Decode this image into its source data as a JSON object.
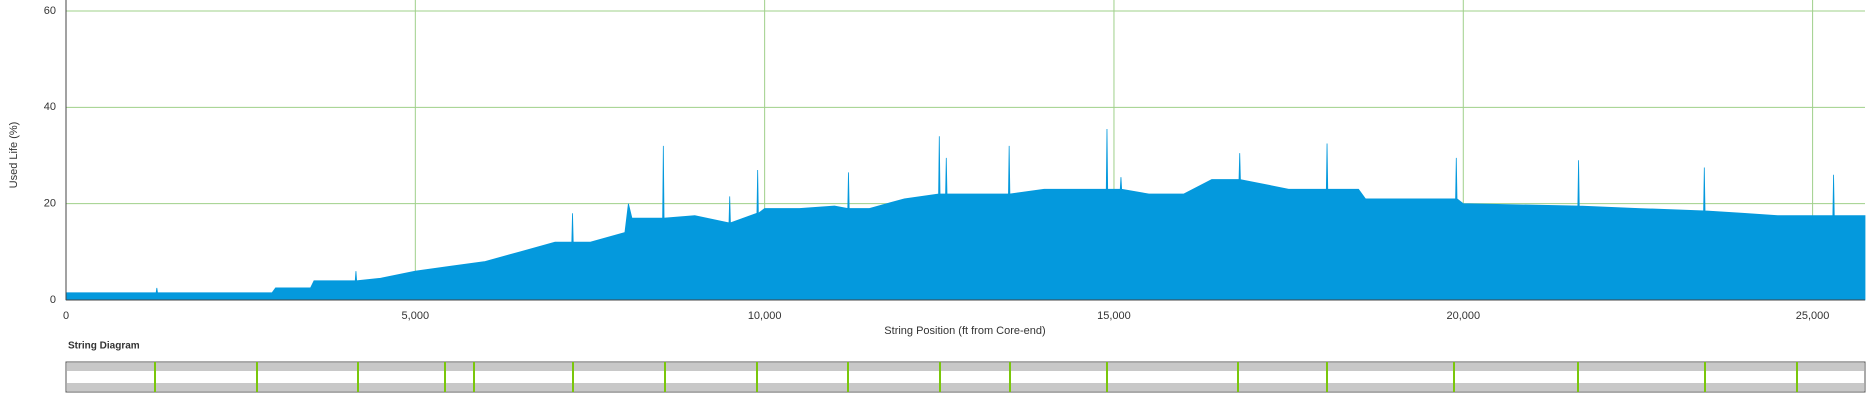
{
  "chart_data": {
    "type": "area",
    "ylabel": "Used Life (%)",
    "xlabel": "String Position (ft from Core-end)",
    "diagram_title": "String Diagram",
    "color": "#0499dd",
    "grid": true,
    "xlim": [
      0,
      25750
    ],
    "ylim": [
      0,
      60
    ],
    "yticks": [
      0,
      20,
      40,
      60
    ],
    "xticks": [
      0,
      {
        "value": 5000,
        "label": "5,000"
      },
      {
        "value": 10000,
        "label": "10,000"
      },
      {
        "value": 15000,
        "label": "15,000"
      },
      {
        "value": 20000,
        "label": "20,000"
      },
      {
        "value": 25000,
        "label": "25,000"
      }
    ],
    "x": [
      0,
      1290,
      1300,
      1310,
      2950,
      3000,
      3500,
      3550,
      4140,
      4150,
      4160,
      4500,
      5000,
      5500,
      6000,
      6500,
      7000,
      7240,
      7250,
      7260,
      7500,
      8000,
      8050,
      8100,
      8540,
      8550,
      8560,
      9000,
      9490,
      9500,
      9510,
      9890,
      9900,
      9910,
      10000,
      10500,
      11000,
      11190,
      11200,
      11210,
      11500,
      12000,
      12490,
      12500,
      12510,
      12590,
      12600,
      12610,
      13000,
      13490,
      13500,
      13510,
      14000,
      14500,
      14890,
      14900,
      14910,
      15090,
      15100,
      15110,
      15500,
      16000,
      16400,
      16790,
      16800,
      16810,
      17500,
      18040,
      18050,
      18060,
      18500,
      18600,
      19890,
      19900,
      19910,
      20000,
      21640,
      21650,
      21660,
      22500,
      23440,
      23450,
      23460,
      24000,
      24500,
      25290,
      25300,
      25310,
      25750
    ],
    "values": [
      1.5,
      1.5,
      2.5,
      1.5,
      1.5,
      2.5,
      2.5,
      4,
      4,
      6,
      4,
      4.5,
      6,
      7,
      8,
      10,
      12,
      12,
      18,
      12,
      12,
      14,
      20,
      17,
      17,
      32,
      17,
      17.5,
      16,
      21.5,
      16,
      18,
      27,
      18,
      19,
      19,
      19.5,
      19,
      26.5,
      19,
      19,
      21,
      22,
      34,
      22,
      22,
      29.5,
      22,
      22,
      22,
      32,
      22,
      23,
      23,
      23,
      35.5,
      23,
      23,
      25.5,
      23,
      22,
      22,
      25,
      25,
      30.5,
      25,
      23,
      23,
      32.5,
      23,
      23,
      21,
      21,
      29.5,
      21,
      20,
      19.5,
      29,
      19.5,
      19,
      18.5,
      27.5,
      18.5,
      18,
      17.5,
      17.5,
      26,
      17.5,
      17.5
    ]
  }
}
